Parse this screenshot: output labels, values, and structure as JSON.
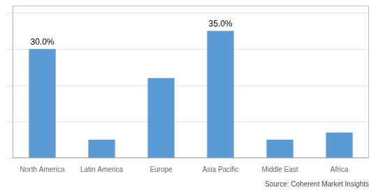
{
  "chart_data": {
    "type": "bar",
    "categories": [
      "North America",
      "Latin America",
      "Europe",
      "Asia Pacific",
      "Middle East",
      "Africa"
    ],
    "values": [
      30.0,
      5.0,
      22.0,
      35.0,
      5.0,
      7.0
    ],
    "value_labels": [
      "30.0%",
      null,
      null,
      "35.0%",
      null,
      null
    ],
    "color": "#5b9bd5",
    "ylim": [
      0,
      42
    ],
    "yticks": [
      0,
      10,
      20,
      30,
      40
    ],
    "grid": true,
    "tick_labels": "x",
    "annotations": [
      "Source: Coherent Market Insights"
    ]
  }
}
